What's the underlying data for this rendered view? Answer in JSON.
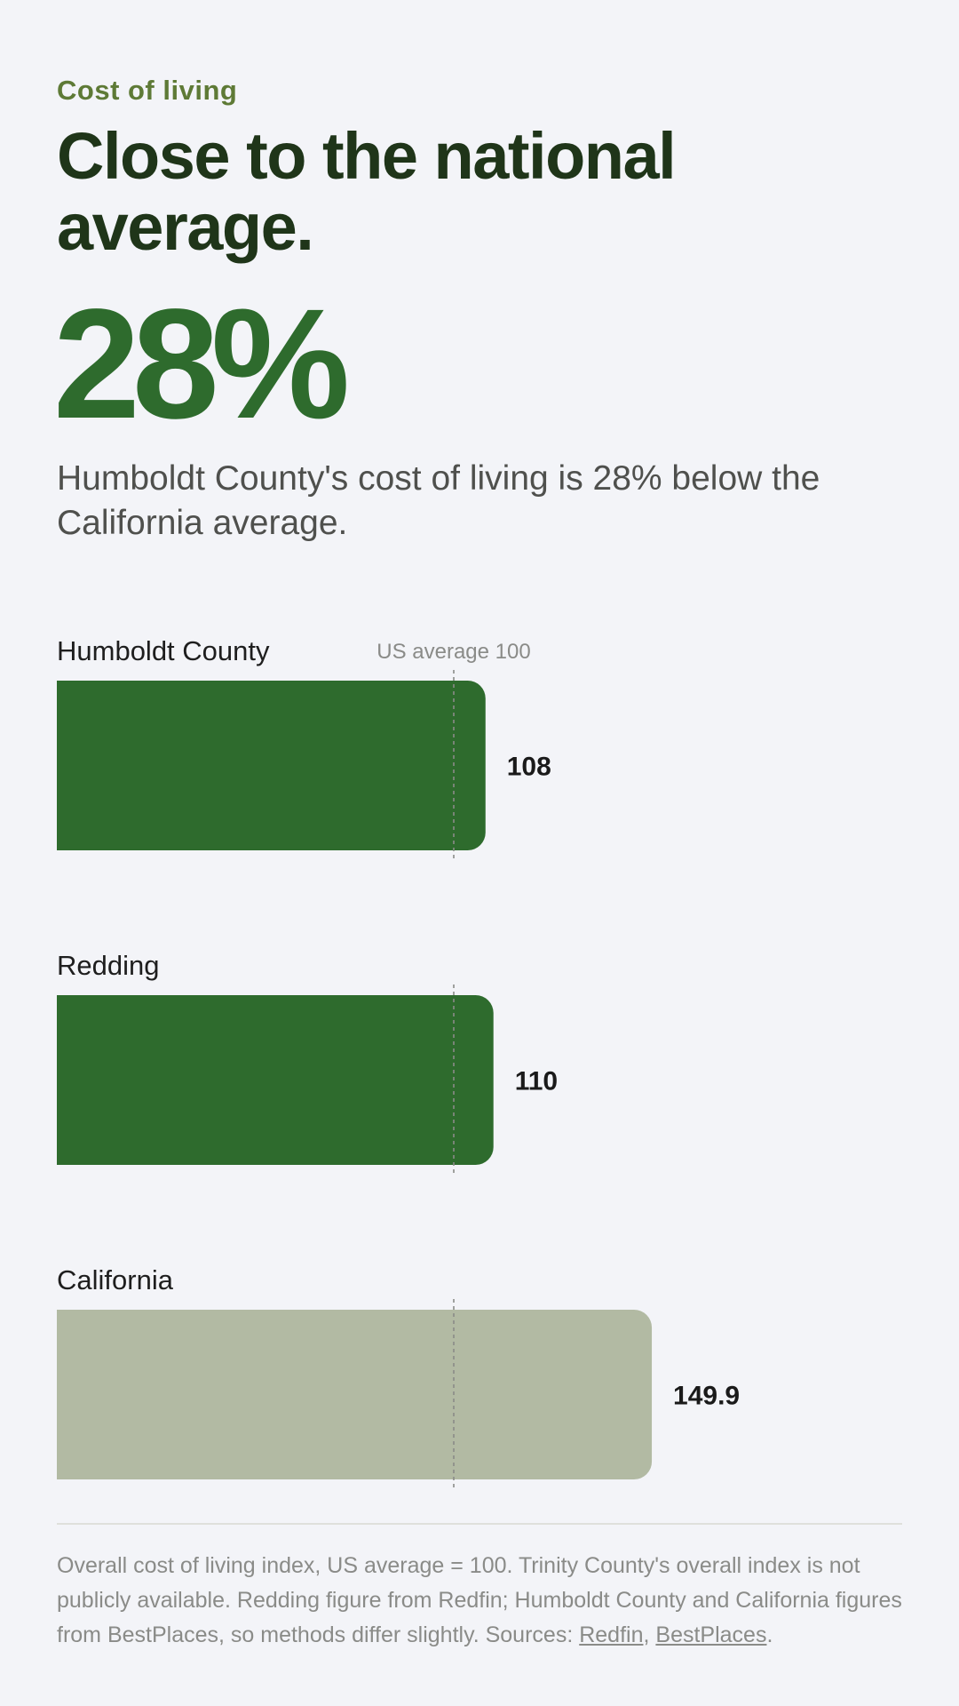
{
  "header": {
    "eyebrow": "Cost of living",
    "headline": "Close to the national average.",
    "big_stat": "28%",
    "summary": "Humboldt County's cost of living is 28% below the California average."
  },
  "colors": {
    "background": "#f3f4f8",
    "eyebrow": "#5e7a36",
    "headline": "#1f3519",
    "accent_green": "#2e6b2d",
    "bar_muted": "#b2baa3",
    "reference_line": "#8a8b88"
  },
  "chart_data": {
    "type": "bar",
    "orientation": "horizontal",
    "categories": [
      "Humboldt County",
      "Redding",
      "California"
    ],
    "values": [
      108,
      110,
      149.9
    ],
    "value_labels": [
      "108",
      "110",
      "149.9"
    ],
    "bar_colors": [
      "#2e6b2d",
      "#2e6b2d",
      "#b2baa3"
    ],
    "xlim": [
      0,
      200
    ],
    "reference_line": {
      "value": 100,
      "label": "US average 100",
      "style": "dashed"
    },
    "title": "",
    "xlabel": "",
    "ylabel": "",
    "grid": false,
    "legend": false
  },
  "footnote": {
    "text": "Overall cost of living index, US average = 100. Trinity County's overall index is not publicly available. Redding figure from Redfin; Humboldt County and California figures from BestPlaces, so methods differ slightly. Sources: ",
    "link_redfin": "Redfin",
    "separator": ", ",
    "link_bestplaces": "BestPlaces",
    "end": "."
  }
}
